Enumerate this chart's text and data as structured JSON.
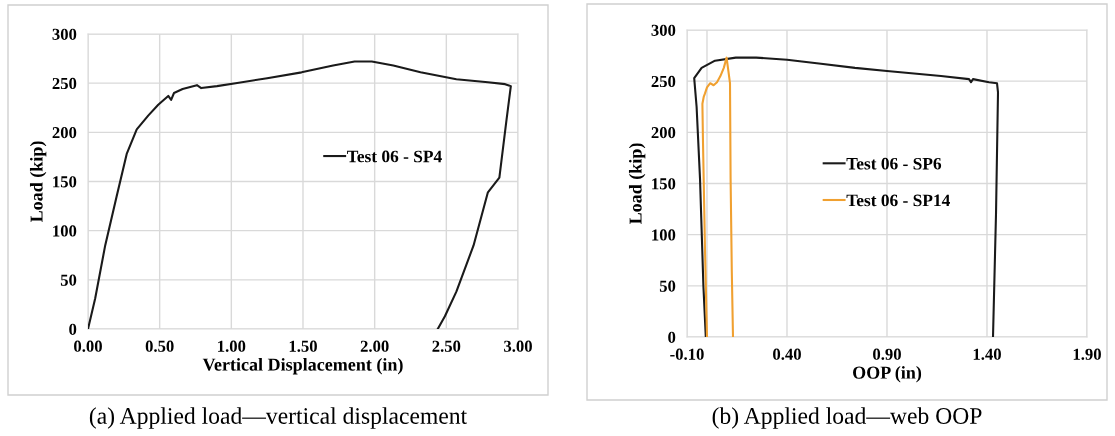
{
  "chart_data": [
    {
      "type": "line",
      "xlabel": "Vertical Displacement (in)",
      "ylabel": "Load (kip)",
      "xlim": [
        0,
        3
      ],
      "xticks": [
        {
          "value": 0,
          "label": "0.00"
        },
        {
          "value": 0.5,
          "label": "0.50"
        },
        {
          "value": 1,
          "label": "1.00"
        },
        {
          "value": 1.5,
          "label": "1.50"
        },
        {
          "value": 2,
          "label": "2.00"
        },
        {
          "value": 2.5,
          "label": "2.50"
        },
        {
          "value": 3,
          "label": "3.00"
        }
      ],
      "ylim": [
        0,
        300
      ],
      "yticks": [
        0,
        50,
        100,
        150,
        200,
        250,
        300
      ],
      "grid": true,
      "legend": "center right",
      "marker": "none",
      "line_style": "solid",
      "series": [
        {
          "name": "Test 06 - SP4",
          "color": "#1a1a1a",
          "x": [
            0,
            0.05,
            0.12,
            0.2,
            0.27,
            0.34,
            0.42,
            0.49,
            0.56,
            0.58,
            0.6,
            0.66,
            0.76,
            0.79,
            0.9,
            1.03,
            1.25,
            1.49,
            1.71,
            1.86,
            1.98,
            2.13,
            2.32,
            2.57,
            2.79,
            2.91,
            2.95,
            2.92,
            2.87,
            2.79,
            2.69,
            2.57,
            2.49,
            2.44
          ],
          "values": [
            0,
            31,
            85,
            135,
            178,
            203,
            217,
            228,
            237,
            233,
            240,
            244,
            248,
            245,
            247,
            250,
            255,
            261,
            268,
            272,
            272,
            268,
            261,
            254,
            251,
            249,
            247,
            213,
            154,
            139,
            85,
            38,
            13,
            0
          ]
        }
      ],
      "annotations": [
        "(a) Applied load—vertical displacement"
      ]
    },
    {
      "type": "line",
      "xlabel": "OOP (in)",
      "ylabel": "Load (kip)",
      "xlim": [
        -0.1,
        1.9
      ],
      "xticks": [
        {
          "value": -0.1,
          "label": "-0.10"
        },
        {
          "value": 0.4,
          "label": "0.40"
        },
        {
          "value": 0.9,
          "label": "0.90"
        },
        {
          "value": 1.4,
          "label": "1.40"
        },
        {
          "value": 1.9,
          "label": "1.90"
        }
      ],
      "ylim": [
        0,
        300
      ],
      "yticks": [
        0,
        50,
        100,
        150,
        200,
        250,
        300
      ],
      "grid": true,
      "legend": "center",
      "marker": "none",
      "line_style": "solid",
      "ref_lines": [
        {
          "axis": "x",
          "value": 0,
          "color": "#d9d9d9"
        }
      ],
      "series": [
        {
          "name": "Test 06 - SP6",
          "color": "#1a1a1a",
          "x": [
            -0.006,
            -0.018,
            -0.035,
            -0.052,
            -0.064,
            -0.027,
            0.04,
            0.144,
            0.246,
            0.4,
            0.57,
            0.74,
            0.9,
            1.17,
            1.31,
            1.32,
            1.33,
            1.41,
            1.45,
            1.455,
            1.445,
            1.43
          ],
          "values": [
            0,
            50,
            155,
            225,
            253,
            263,
            270,
            273,
            273,
            271,
            267,
            263,
            260,
            255,
            252,
            249,
            252,
            249,
            248,
            239,
            120,
            0
          ]
        },
        {
          "name": "Test 06 - SP14",
          "color": "#f0a030",
          "x": [
            0,
            -0.01,
            -0.02,
            -0.023,
            -0.016,
            -0.01,
            0,
            0.016,
            0.033,
            0.05,
            0.067,
            0.084,
            0.098,
            0.115,
            0.118,
            0.124,
            0.13
          ],
          "values": [
            0,
            85,
            190,
            228,
            235,
            238,
            244,
            248,
            246,
            249,
            255,
            263,
            273,
            248,
            155,
            64,
            0
          ]
        }
      ],
      "annotations": [
        "(b) Applied load—web OOP"
      ]
    }
  ]
}
